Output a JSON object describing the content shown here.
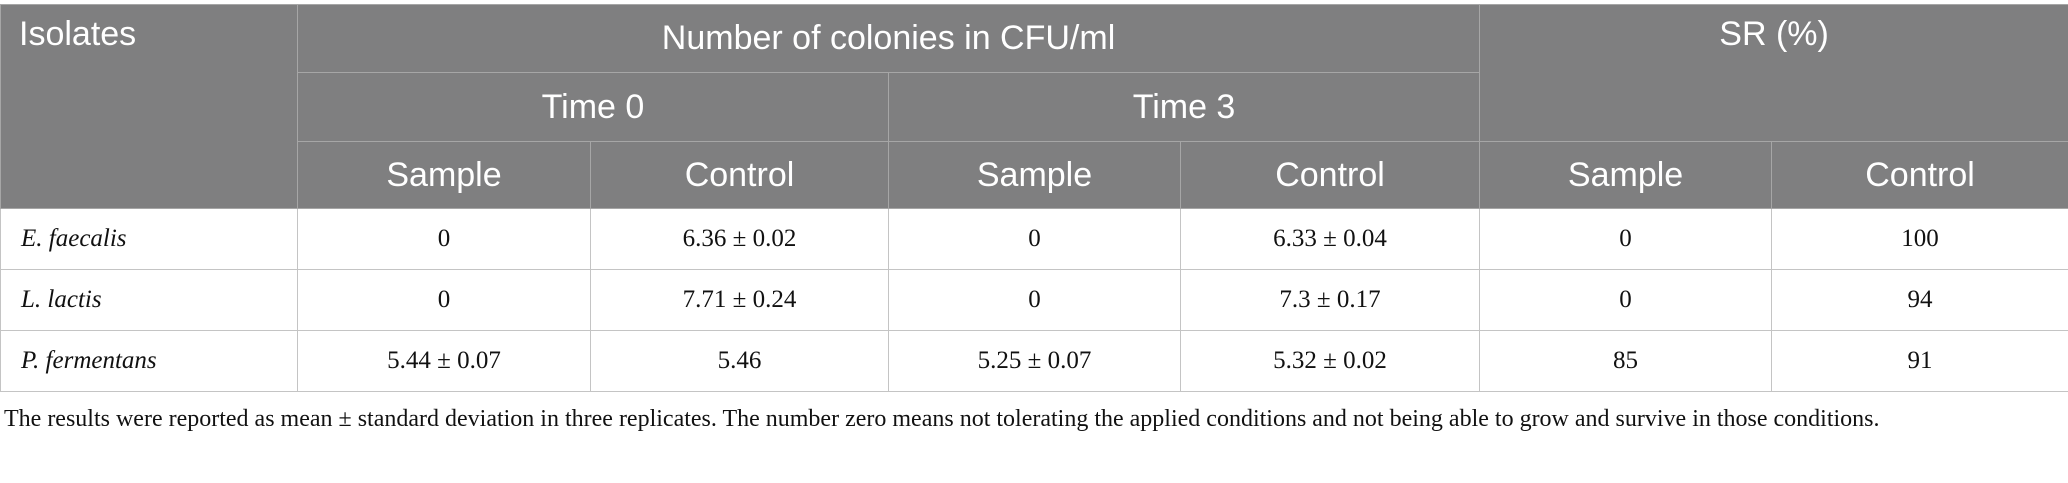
{
  "table": {
    "header": {
      "isolates": "Isolates",
      "colonies": "Number of colonies in CFU/ml",
      "time0": "Time 0",
      "time3": "Time 3",
      "sr": "SR (%)",
      "sub": [
        "Sample",
        "Control",
        "Sample",
        "Control",
        "Sample",
        "Control"
      ]
    },
    "rows": [
      [
        "E. faecalis",
        "0",
        "6.36 ± 0.02",
        "0",
        "6.33 ± 0.04",
        "0",
        "100"
      ],
      [
        "L. lactis",
        "0",
        "7.71 ± 0.24",
        "0",
        "7.3 ± 0.17",
        "0",
        "94"
      ],
      [
        "P. fermentans",
        "5.44 ± 0.07",
        "5.46",
        "5.25 ± 0.07",
        "5.32 ± 0.02",
        "85",
        "91"
      ]
    ]
  },
  "footnote": "The results were reported as mean ± standard deviation in three replicates. The number zero means not tolerating the applied conditions and not being able to grow and survive in those conditions."
}
